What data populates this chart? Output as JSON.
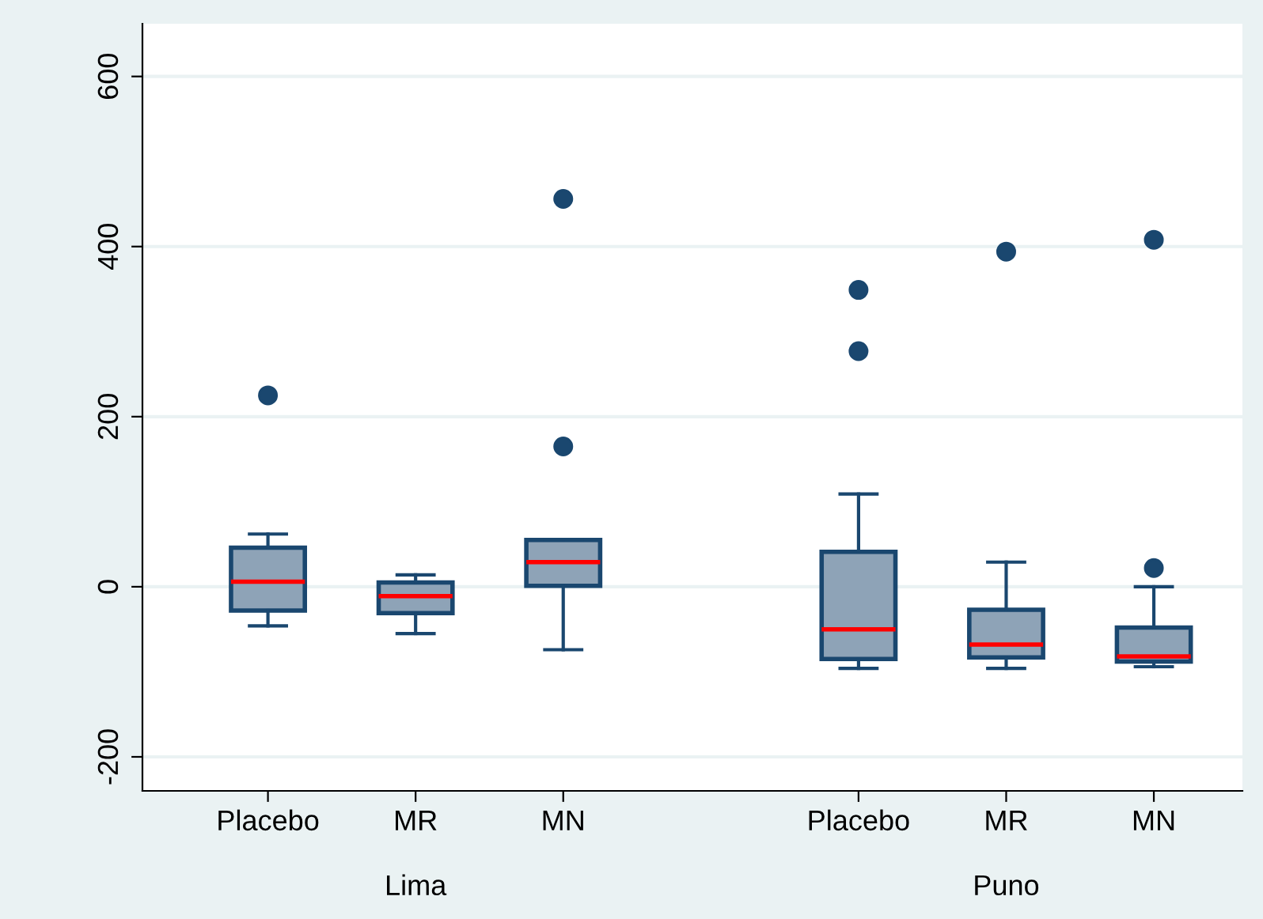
{
  "chart_data": {
    "type": "box",
    "categories": [
      "Placebo",
      "MR",
      "MN",
      null,
      "Placebo",
      "MR",
      "MN"
    ],
    "annotations": [
      "Lima",
      "Puno"
    ],
    "boxes": [
      {
        "low": -46,
        "q1": -28,
        "median": 6,
        "q3": 46,
        "high": 62,
        "outliers": [
          225
        ]
      },
      {
        "low": -55,
        "q1": -31,
        "median": -11,
        "q3": 5,
        "high": 14
      },
      {
        "low": -74,
        "q1": 1,
        "median": 29,
        "q3": 55,
        "high": 55,
        "outliers": [
          456,
          165
        ]
      },
      null,
      {
        "low": -96,
        "q1": -85,
        "median": -50,
        "q3": 41,
        "high": 109,
        "outliers": [
          349,
          277
        ]
      },
      {
        "low": -96,
        "q1": -83,
        "median": -68,
        "q3": -27,
        "high": 29,
        "outliers": [
          394
        ]
      },
      {
        "low": -94,
        "q1": -88,
        "median": -82,
        "q3": -48,
        "high": 0,
        "outliers": [
          408,
          22
        ]
      }
    ],
    "color": "#8ea3b7",
    "ylim": [
      -240,
      662
    ],
    "yticks": [
      -200,
      0,
      200,
      400,
      600
    ],
    "grid": "y"
  }
}
